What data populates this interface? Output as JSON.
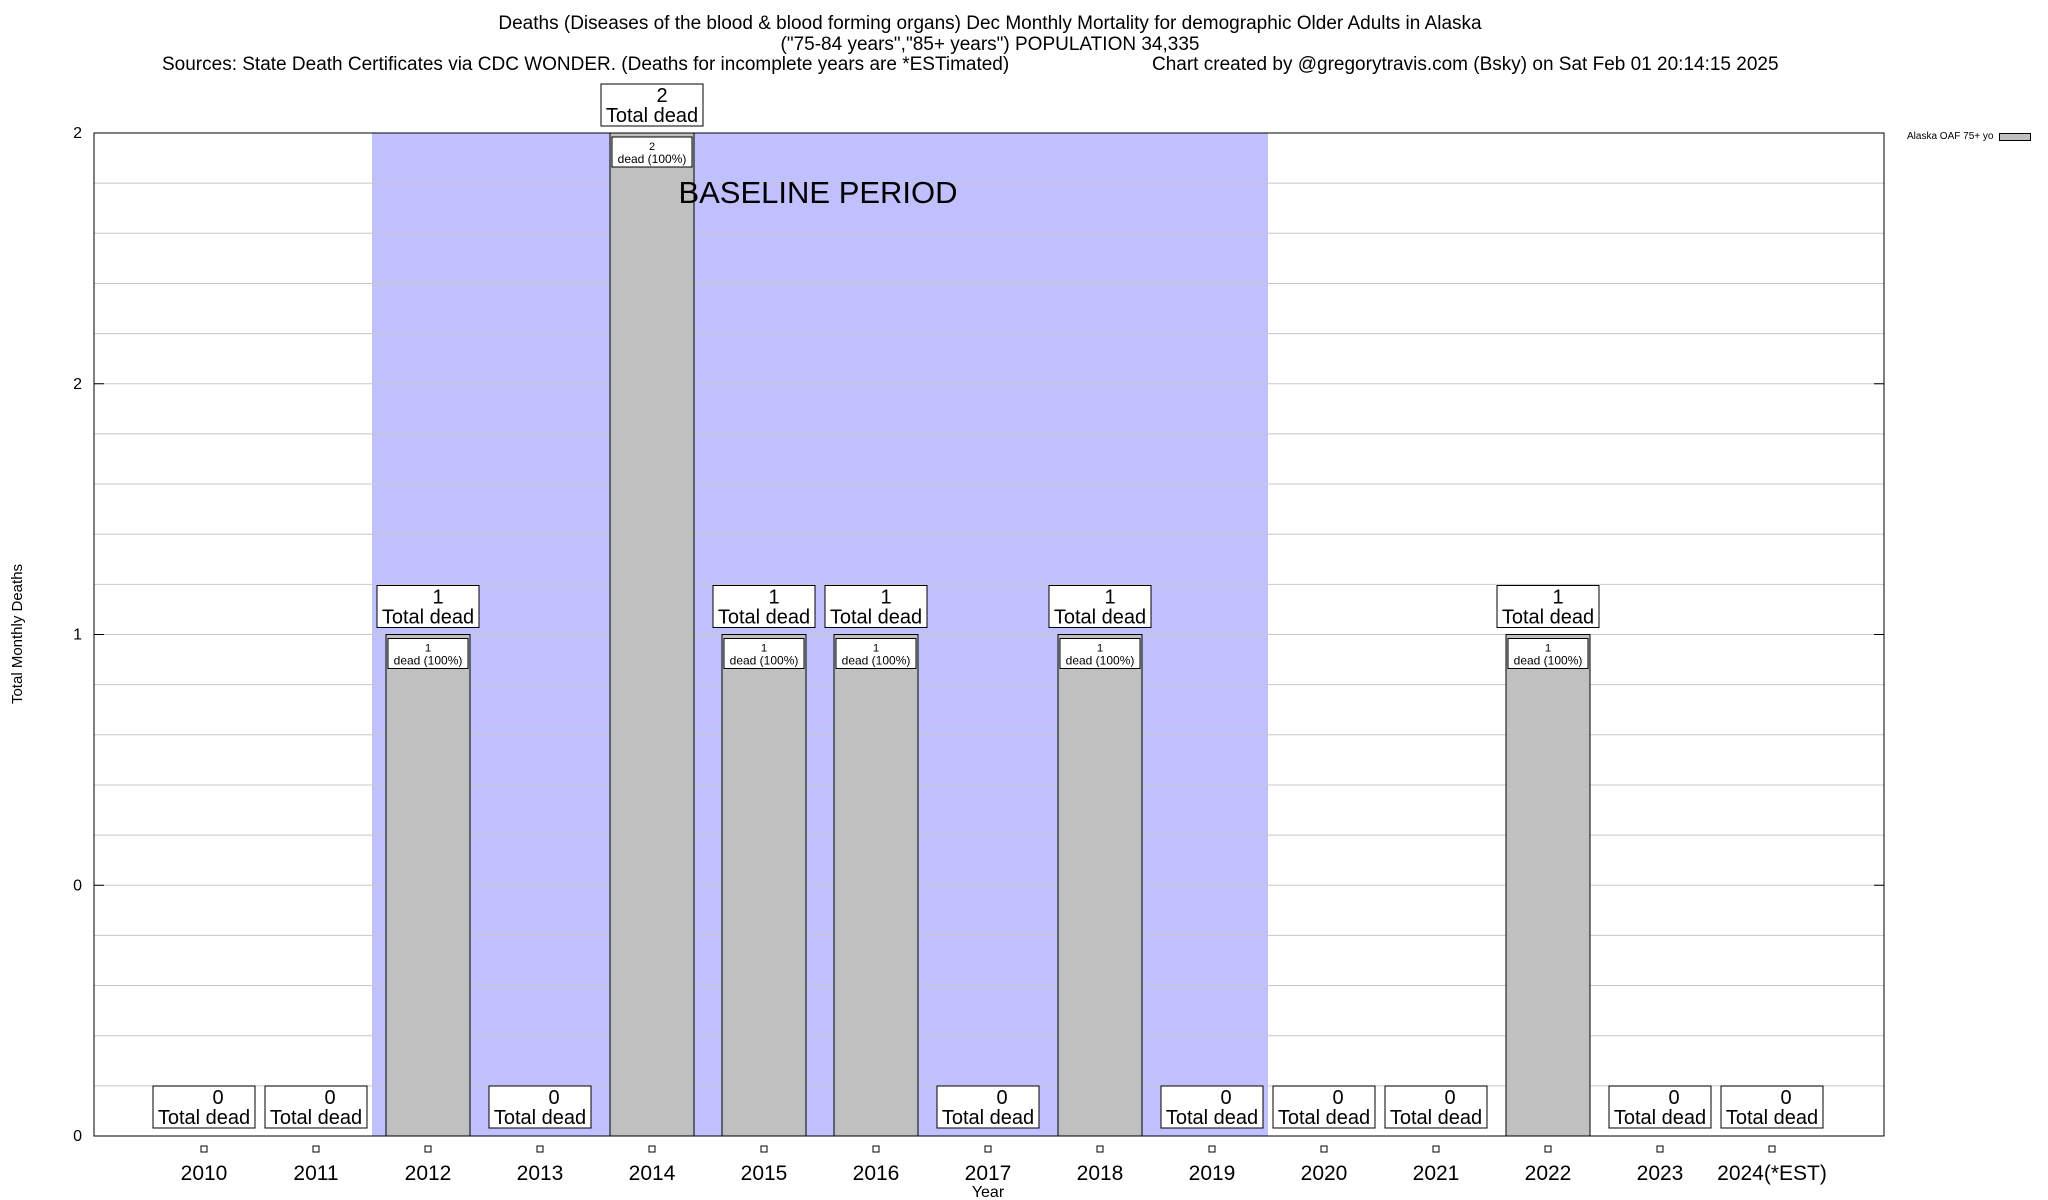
{
  "chart_data": {
    "type": "bar",
    "title": "Deaths (Diseases of the blood & blood forming organs) Dec Monthly Mortality for demographic Older Adults in Alaska",
    "subtitle": "(\"75-84 years\",\"85+ years\") POPULATION 34,335",
    "sources": "Sources: State Death Certificates via CDC WONDER. (Deaths for incomplete years are *ESTimated)",
    "credit": "Chart created by @gregorytravis.com (Bsky) on Sat Feb 01 20:14:15 2025",
    "xlabel": "Year",
    "ylabel": "Total Monthly Deaths",
    "ylim": [
      0,
      2
    ],
    "y_tick_labels": [
      "0",
      "0",
      "1",
      "2",
      "2"
    ],
    "categories": [
      "2010",
      "2011",
      "2012",
      "2013",
      "2014",
      "2015",
      "2016",
      "2017",
      "2018",
      "2019",
      "2020",
      "2021",
      "2022",
      "2023",
      "2024(*EST)"
    ],
    "series": [
      {
        "name": "Alaska OAF 75+ yo",
        "values": [
          0,
          0,
          1,
          0,
          2,
          1,
          1,
          0,
          1,
          0,
          0,
          0,
          1,
          0,
          0
        ]
      }
    ],
    "total_label_suffix": "Total dead",
    "inner_label_suffix": "dead (100%)",
    "baseline": {
      "label": "BASELINE PERIOD",
      "start": "2012",
      "end": "2019"
    },
    "grid": true,
    "legend": "top-right",
    "colors": {
      "bar": "#c0c0c0",
      "baseline": "#c0c0ff",
      "grid": "#c8c8c8"
    }
  }
}
